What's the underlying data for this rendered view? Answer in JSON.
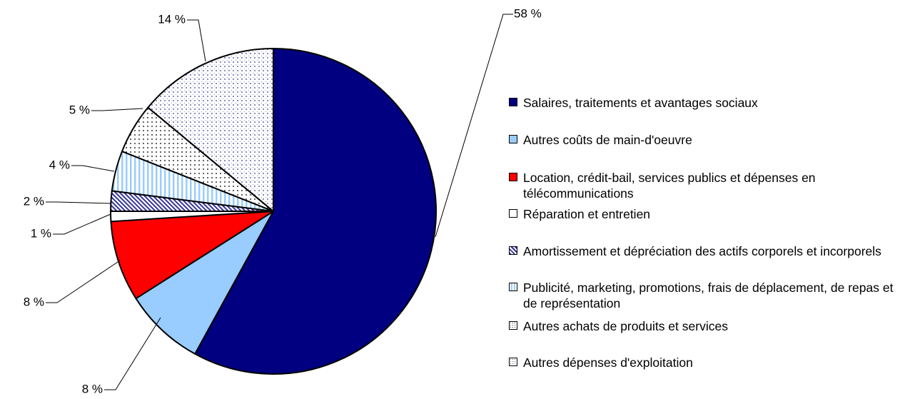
{
  "chart_data": {
    "type": "pie",
    "categories": [
      "Salaires, traitements et avantages sociaux",
      "Autres coûts de main-d'oeuvre",
      "Location, crédit-bail, services publics et dépenses en télécommunications",
      "Réparation et entretien",
      "Amortissement et dépréciation des actifs corporels et incorporels",
      "Publicité, marketing, promotions, frais de déplacement, de repas et de représentation",
      "Autres achats de produits et services",
      "Autres dépenses d'exploitation"
    ],
    "values": [
      58,
      8,
      8,
      1,
      2,
      4,
      5,
      14
    ],
    "value_labels": [
      "58 %",
      "8 %",
      "8 %",
      "1 %",
      "2 %",
      "4 %",
      "5 %",
      "14 %"
    ],
    "colors": [
      "#000080",
      "#99ccff",
      "#ff0000",
      "#ffffff",
      "#333399",
      "#99ccff",
      "#333333",
      "#6666aa"
    ],
    "patterns": [
      "solid",
      "solid",
      "solid",
      "solid",
      "diagonal",
      "vertical",
      "dots",
      "dots"
    ],
    "legend": "right"
  }
}
